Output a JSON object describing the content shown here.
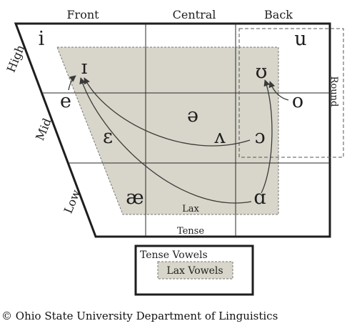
{
  "columns": {
    "front": "Front",
    "central": "Central",
    "back": "Back"
  },
  "rows": {
    "high": "High",
    "mid": "Mid",
    "low": "Low"
  },
  "round_label": "Round",
  "tense_label": "Tense",
  "lax_label": "Lax",
  "vowels": {
    "i": "i",
    "u": "u",
    "e": "e",
    "o": "o",
    "lax_i": "ɪ",
    "lax_u": "ʊ",
    "schwa": "ə",
    "epsilon": "ɛ",
    "wedge": "ʌ",
    "open_o": "ɔ",
    "ash": "æ",
    "alpha": "ɑ"
  },
  "legend": {
    "tense": "Tense Vowels",
    "lax": "Lax Vowels"
  },
  "credit": "© Ohio State University Department of Linguistics",
  "colors": {
    "lax_fill": "#d8d6ca",
    "line": "#1e1e1e",
    "grid": "#2a2a2a"
  }
}
